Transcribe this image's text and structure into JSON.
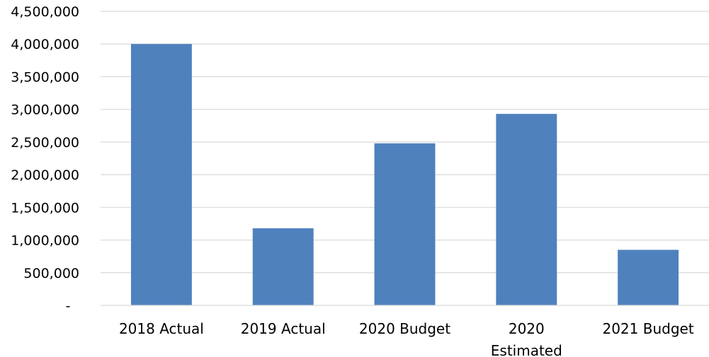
{
  "chart_data": {
    "type": "bar",
    "categories": [
      [
        "2018 Actual"
      ],
      [
        "2019 Actual"
      ],
      [
        "2020 Budget"
      ],
      [
        "2020",
        "Estimated"
      ],
      [
        "2021 Budget"
      ]
    ],
    "values": [
      4000000,
      1180000,
      2480000,
      2930000,
      850000
    ],
    "title": "",
    "xlabel": "",
    "ylabel": "",
    "ylim": [
      0,
      4500000
    ],
    "yticks": [
      {
        "value": 0,
        "label": "-"
      },
      {
        "value": 500000,
        "label": "500,000"
      },
      {
        "value": 1000000,
        "label": "1,000,000"
      },
      {
        "value": 1500000,
        "label": "1,500,000"
      },
      {
        "value": 2000000,
        "label": "2,000,000"
      },
      {
        "value": 2500000,
        "label": "2,500,000"
      },
      {
        "value": 3000000,
        "label": "3,000,000"
      },
      {
        "value": 3500000,
        "label": "3,500,000"
      },
      {
        "value": 4000000,
        "label": "4,000,000"
      },
      {
        "value": 4500000,
        "label": "4,500,000"
      }
    ],
    "grid": true,
    "legend": "none",
    "bar_color": "#4f81bd",
    "gridline_color": "#d9d9d9"
  }
}
